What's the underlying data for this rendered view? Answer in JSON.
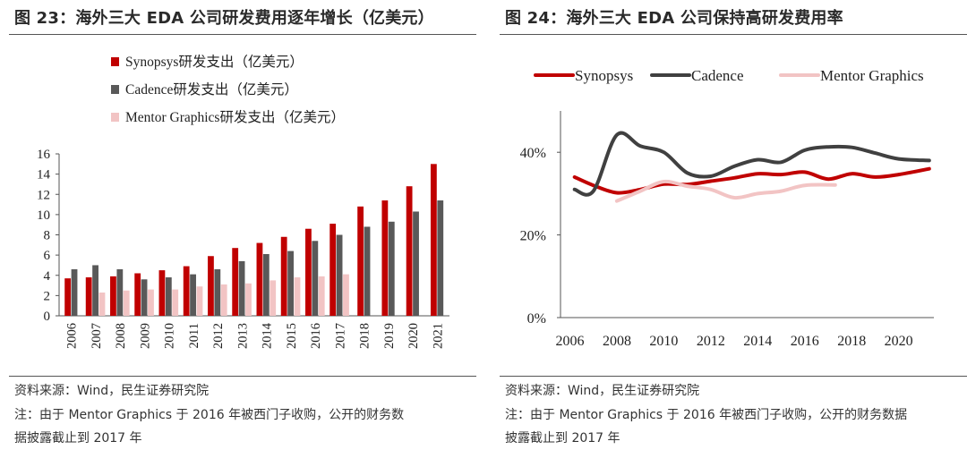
{
  "left": {
    "title": "图 23：海外三大 EDA 公司研发费用逐年增长（亿美元）",
    "source": "资料来源：Wind，民生证券研究院",
    "note_line1": "注：由于 Mentor Graphics 于 2016 年被西门子收购，公开的财务数",
    "note_line2": "据披露截止到 2017 年"
  },
  "right": {
    "title": "图 24：海外三大 EDA 公司保持高研发费用率",
    "source": "资料来源：Wind，民生证券研究院",
    "note_line1": "注：由于 Mentor Graphics 于 2016 年被西门子收购，公开的财务数据",
    "note_line2": "披露截止到 2017 年"
  },
  "chart_data": [
    {
      "type": "bar",
      "title": "",
      "categories": [
        "2006",
        "2007",
        "2008",
        "2009",
        "2010",
        "2011",
        "2012",
        "2013",
        "2014",
        "2015",
        "2016",
        "2017",
        "2018",
        "2019",
        "2020",
        "2021"
      ],
      "series": [
        {
          "name": "Synopsys研发支出（亿美元）",
          "color": "#c00000",
          "values": [
            3.7,
            3.8,
            3.9,
            4.2,
            4.5,
            4.9,
            5.9,
            6.7,
            7.2,
            7.8,
            8.6,
            9.1,
            10.8,
            11.4,
            12.8,
            15.0
          ]
        },
        {
          "name": "Cadence研发支出（亿美元）",
          "color": "#595959",
          "values": [
            4.6,
            5.0,
            4.6,
            3.6,
            3.8,
            4.1,
            4.6,
            5.4,
            6.1,
            6.4,
            7.4,
            8.0,
            8.8,
            9.3,
            10.3,
            11.4
          ]
        },
        {
          "name": "Mentor Graphics研发支出（亿美元）",
          "color": "#f2c4c4",
          "values": [
            null,
            2.3,
            2.5,
            2.6,
            2.6,
            2.9,
            3.1,
            3.2,
            3.5,
            3.8,
            3.9,
            4.1,
            null,
            null,
            null,
            null
          ]
        }
      ],
      "ylim": [
        0,
        16
      ],
      "yticks": [
        "0",
        "2",
        "4",
        "6",
        "8",
        "10",
        "12",
        "14",
        "16"
      ],
      "legend": "top-left",
      "grid": false
    },
    {
      "type": "line",
      "title": "",
      "series": [
        {
          "name": "Synopsys",
          "color": "#c00000",
          "points": [
            [
              2006.2,
              34
            ],
            [
              2007,
              32
            ],
            [
              2008,
              30.2
            ],
            [
              2009,
              31
            ],
            [
              2010,
              32.3
            ],
            [
              2011,
              32.2
            ],
            [
              2012,
              33
            ],
            [
              2013,
              33.8
            ],
            [
              2014,
              34.8
            ],
            [
              2015,
              34.6
            ],
            [
              2016,
              35.2
            ],
            [
              2017,
              33.5
            ],
            [
              2018,
              34.8
            ],
            [
              2019,
              34
            ],
            [
              2020,
              34.6
            ],
            [
              2021.3,
              36
            ]
          ]
        },
        {
          "name": "Cadence",
          "color": "#404040",
          "points": [
            [
              2006.2,
              31
            ],
            [
              2007,
              30.6
            ],
            [
              2008,
              44.2
            ],
            [
              2009,
              41.5
            ],
            [
              2010,
              40
            ],
            [
              2011,
              35
            ],
            [
              2012,
              34.2
            ],
            [
              2013,
              36.6
            ],
            [
              2014,
              38.2
            ],
            [
              2015,
              37.6
            ],
            [
              2016,
              40.5
            ],
            [
              2017,
              41.3
            ],
            [
              2018,
              41.2
            ],
            [
              2019,
              39.8
            ],
            [
              2020,
              38.4
            ],
            [
              2021.3,
              38
            ]
          ]
        },
        {
          "name": "Mentor Graphics",
          "color": "#f2c4c4",
          "points": [
            [
              2008,
              28.2
            ],
            [
              2009,
              30.6
            ],
            [
              2010,
              32.9
            ],
            [
              2011,
              31.8
            ],
            [
              2012,
              31
            ],
            [
              2013,
              29
            ],
            [
              2014,
              30
            ],
            [
              2015,
              30.6
            ],
            [
              2016,
              32
            ],
            [
              2017.3,
              32.1
            ]
          ]
        }
      ],
      "xticks": [
        "2006",
        "2008",
        "2010",
        "2012",
        "2014",
        "2016",
        "2018",
        "2020"
      ],
      "yticks": [
        "0%",
        "20%",
        "40%"
      ],
      "xlim": [
        2005.6,
        2021.5
      ],
      "ylim": [
        0,
        50
      ],
      "legend": "top",
      "grid": false
    }
  ]
}
